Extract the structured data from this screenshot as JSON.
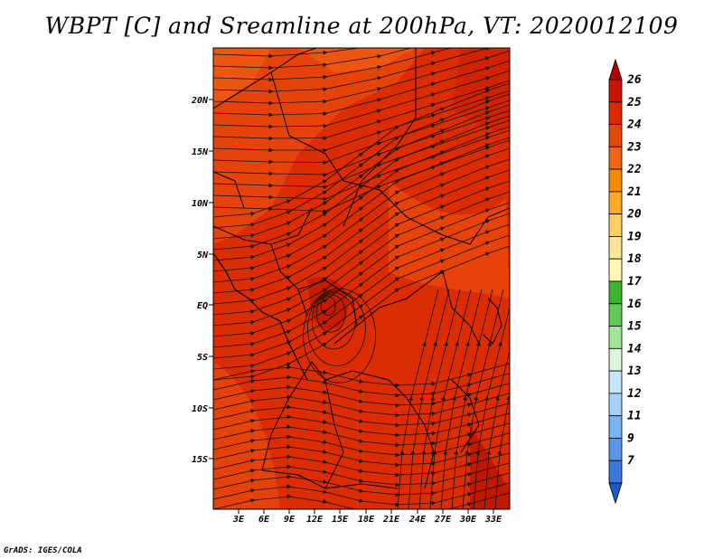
{
  "title": "WBPT [C] and Sreamline at 200hPa, VT: 2020012109",
  "credit": "GrADS: IGES/COLA",
  "map": {
    "lon_labels": [
      "3E",
      "6E",
      "9E",
      "12E",
      "15E",
      "18E",
      "21E",
      "24E",
      "27E",
      "30E",
      "33E"
    ],
    "lat_labels": [
      "20N",
      "15N",
      "10N",
      "5N",
      "EQ",
      "5S",
      "10S",
      "15S"
    ],
    "field": "WBPT",
    "level": "200hPa",
    "valid_time": "2020012109",
    "dominant_color": "#e03808"
  },
  "colorbar": {
    "labels": [
      "26",
      "25",
      "24",
      "23",
      "22",
      "21",
      "20",
      "19",
      "18",
      "17",
      "16",
      "15",
      "14",
      "13",
      "12",
      "11",
      "9",
      "7"
    ],
    "colors": [
      "#b40000",
      "#c81400",
      "#dc2800",
      "#e6460a",
      "#f06414",
      "#f58c00",
      "#faaa28",
      "#fad264",
      "#fae696",
      "#fffab4",
      "#3cb432",
      "#64c85a",
      "#a0e696",
      "#dcf5dc",
      "#c8e6fa",
      "#a0d2fa",
      "#78b4f0",
      "#5a96e6",
      "#3c78dc",
      "#1e5ac8"
    ]
  }
}
